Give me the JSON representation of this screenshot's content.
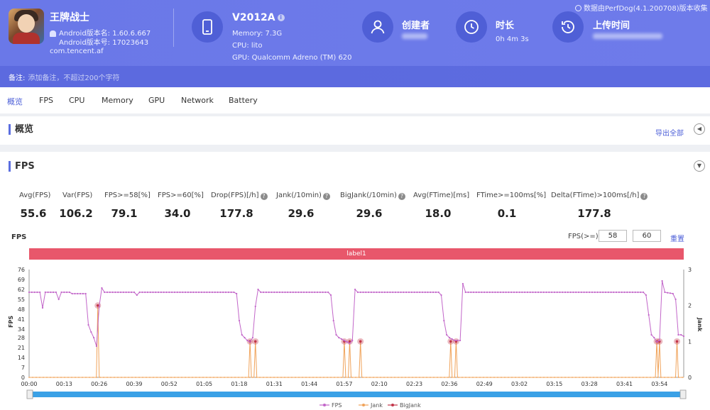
{
  "header": {
    "app_name": "王牌战士",
    "app_version": "Android版本名: 1.60.6.667",
    "app_build": "Android版本号: 17023643",
    "package": "com.tencent.af",
    "device_name": "V2012A",
    "device_info_glyph": "i",
    "memory": "Memory: 7.3G",
    "cpu": "CPU: lito",
    "gpu": "GPU: Qualcomm Adreno (TM) 620",
    "creator_label": "创建者",
    "duration_label": "时长",
    "duration_value": "0h 4m 3s",
    "upload_label": "上传时间",
    "source_note": "数据由PerfDog(4.1.200708)版本收集",
    "note_label": "备注:",
    "note_placeholder": "添加备注，不超过200个字符",
    "icons": [
      "android-icon",
      "phone-icon",
      "user-icon",
      "clock-icon",
      "history-icon",
      "info-icon"
    ]
  },
  "tabs": [
    {
      "label": "概览",
      "active": true
    },
    {
      "label": "FPS"
    },
    {
      "label": "CPU"
    },
    {
      "label": "Memory"
    },
    {
      "label": "GPU"
    },
    {
      "label": "Network"
    },
    {
      "label": "Battery"
    }
  ],
  "overview": {
    "title": "概览",
    "export_label": "导出全部",
    "collapse_glyph": "◀"
  },
  "fps_panel": {
    "title": "FPS",
    "collapse_glyph": "▼",
    "help_glyph": "?",
    "metrics": [
      {
        "label": "Avg(FPS)",
        "value": "55.6",
        "help": false
      },
      {
        "label": "Var(FPS)",
        "value": "106.2",
        "help": false
      },
      {
        "label": "FPS>=58[%]",
        "value": "79.1",
        "help": false
      },
      {
        "label": "FPS>=60[%]",
        "value": "34.0",
        "help": false
      },
      {
        "label": "Drop(FPS)[/h]",
        "value": "177.8",
        "help": true
      },
      {
        "label": "Jank(/10min)",
        "value": "29.6",
        "help": true
      },
      {
        "label": "BigJank(/10min)",
        "value": "29.6",
        "help": true
      },
      {
        "label": "Avg(FTime)[ms]",
        "value": "18.0",
        "help": false
      },
      {
        "label": "FTime>=100ms[%]",
        "value": "0.1",
        "help": false
      },
      {
        "label": "Delta(FTime)>100ms[/h]",
        "value": "177.8",
        "help": true
      }
    ],
    "chart_title": "FPS",
    "threshold_label": "FPS(>=)",
    "threshold_1": "58",
    "threshold_2": "60",
    "reset_label": "重置",
    "label_bar": "label1"
  },
  "colors": {
    "fps": "#c266c9",
    "jank": "#f0a35a",
    "bigjank": "#c2364a",
    "header": "#6a78e8",
    "accent": "#4c5fd8",
    "label_bar": "#e8576b"
  },
  "chart_data": {
    "type": "line",
    "xlabel": "",
    "ylabel": "FPS",
    "y2label": "Jank",
    "ylim": [
      0,
      76
    ],
    "y2lim": [
      0,
      3
    ],
    "y_ticks": [
      "0",
      "7",
      "14",
      "21",
      "28",
      "34",
      "41",
      "48",
      "55",
      "62",
      "69",
      "76"
    ],
    "y2_ticks": [
      "0",
      "1",
      "2",
      "3"
    ],
    "x_ticks": [
      "00:00",
      "00:13",
      "00:26",
      "00:39",
      "00:52",
      "01:05",
      "01:18",
      "01:31",
      "01:44",
      "01:57",
      "02:10",
      "02:23",
      "02:36",
      "02:49",
      "03:02",
      "03:15",
      "03:28",
      "03:41",
      "03:54"
    ],
    "xlim_seconds": [
      0,
      243
    ],
    "legend": [
      "FPS",
      "Jank",
      "BigJank"
    ],
    "legend_position": "bottom",
    "fps_points": [
      [
        0,
        60
      ],
      [
        4,
        60
      ],
      [
        5,
        49
      ],
      [
        6,
        60
      ],
      [
        10,
        60
      ],
      [
        11,
        55
      ],
      [
        12,
        60
      ],
      [
        15,
        60
      ],
      [
        16,
        59
      ],
      [
        21,
        59
      ],
      [
        22,
        37
      ],
      [
        23,
        32
      ],
      [
        24,
        28
      ],
      [
        25,
        22
      ],
      [
        26,
        50
      ],
      [
        27,
        63
      ],
      [
        28,
        60
      ],
      [
        39,
        60
      ],
      [
        40,
        58
      ],
      [
        41,
        60
      ],
      [
        76,
        60
      ],
      [
        77,
        59
      ],
      [
        78,
        40
      ],
      [
        79,
        30
      ],
      [
        80,
        28
      ],
      [
        81,
        26
      ],
      [
        82,
        25
      ],
      [
        83,
        28
      ],
      [
        84,
        50
      ],
      [
        85,
        62
      ],
      [
        86,
        60
      ],
      [
        111,
        60
      ],
      [
        112,
        58
      ],
      [
        113,
        40
      ],
      [
        114,
        30
      ],
      [
        115,
        28
      ],
      [
        116,
        27
      ],
      [
        117,
        26
      ],
      [
        119,
        24
      ],
      [
        120,
        26
      ],
      [
        121,
        62
      ],
      [
        122,
        60
      ],
      [
        152,
        60
      ],
      [
        153,
        58
      ],
      [
        154,
        40
      ],
      [
        155,
        30
      ],
      [
        156,
        28
      ],
      [
        157,
        27
      ],
      [
        158,
        26
      ],
      [
        160,
        26
      ],
      [
        161,
        66
      ],
      [
        162,
        60
      ],
      [
        228,
        60
      ],
      [
        229,
        58
      ],
      [
        230,
        44
      ],
      [
        231,
        30
      ],
      [
        232,
        28
      ],
      [
        233,
        25
      ],
      [
        234,
        26
      ],
      [
        235,
        68
      ],
      [
        236,
        60
      ],
      [
        239,
        59
      ],
      [
        240,
        55
      ],
      [
        241,
        30
      ],
      [
        242,
        30
      ],
      [
        243,
        29
      ]
    ],
    "jank_points": [
      [
        25.5,
        2
      ],
      [
        82,
        1
      ],
      [
        84,
        1
      ],
      [
        117,
        1
      ],
      [
        119,
        1
      ],
      [
        123,
        1
      ],
      [
        156.5,
        1
      ],
      [
        158.5,
        1
      ],
      [
        233,
        1
      ],
      [
        234,
        1
      ],
      [
        240.5,
        1
      ]
    ],
    "bigjank_points": [
      [
        25.5,
        2
      ],
      [
        82,
        1
      ],
      [
        84,
        1
      ],
      [
        117,
        1
      ],
      [
        119,
        1
      ],
      [
        123,
        1
      ],
      [
        156.5,
        1
      ],
      [
        158.5,
        1
      ],
      [
        233,
        1
      ],
      [
        234,
        1
      ],
      [
        240.5,
        1
      ]
    ]
  }
}
